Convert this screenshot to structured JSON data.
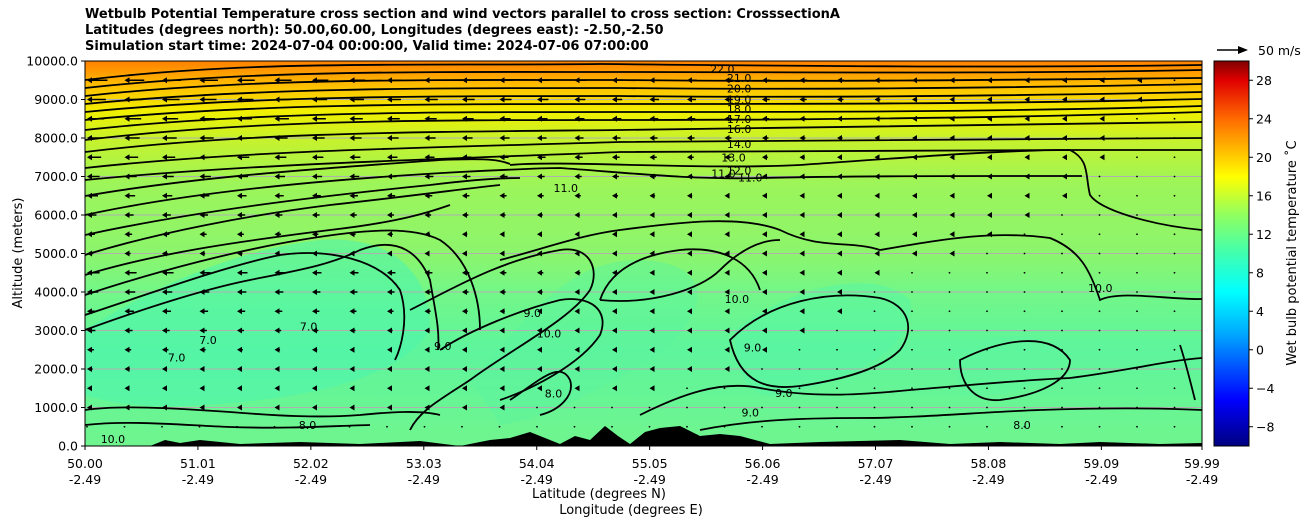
{
  "chart_data": {
    "type": "contour",
    "title_lines": [
      "Wetbulb Potential Temperature cross section and wind vectors parallel to cross section: CrosssectionA",
      "Latitudes (degrees north): 50.00,60.00, Longitudes (degrees east): -2.50,-2.50",
      "Simulation start time: 2024-07-04 00:00:00, Valid time: 2024-07-06 07:00:00"
    ],
    "ylabel": "Altitude (meters)",
    "xlabel_lat": "Latitude (degrees N)",
    "xlabel_lon": "Longitude (degrees E)",
    "ylim": [
      0,
      10000
    ],
    "y_ticks": [
      "0.0",
      "1000.0",
      "2000.0",
      "3000.0",
      "4000.0",
      "5000.0",
      "6000.0",
      "7000.0",
      "8000.0",
      "9000.0",
      "10000.0"
    ],
    "x_ticks": [
      {
        "lat": "50.00",
        "lon": "-2.49"
      },
      {
        "lat": "51.01",
        "lon": "-2.49"
      },
      {
        "lat": "52.02",
        "lon": "-2.49"
      },
      {
        "lat": "53.03",
        "lon": "-2.49"
      },
      {
        "lat": "54.04",
        "lon": "-2.49"
      },
      {
        "lat": "55.05",
        "lon": "-2.49"
      },
      {
        "lat": "56.06",
        "lon": "-2.49"
      },
      {
        "lat": "57.07",
        "lon": "-2.49"
      },
      {
        "lat": "58.08",
        "lon": "-2.49"
      },
      {
        "lat": "59.09",
        "lon": "-2.49"
      },
      {
        "lat": "59.99",
        "lon": "-2.49"
      }
    ],
    "colorbar": {
      "label": "Wet bulb potential temperature ˚C",
      "range": [
        -10,
        30
      ],
      "ticks": [
        "−8",
        "−4",
        "0",
        "4",
        "8",
        "12",
        "16",
        "20",
        "24",
        "28"
      ]
    },
    "quiver_key": {
      "label": "50 m/s"
    },
    "contour_labels": [
      {
        "text": "22.0",
        "lat": 55.7,
        "alt": 9790
      },
      {
        "text": "21.0",
        "lat": 55.85,
        "alt": 9560
      },
      {
        "text": "20.0",
        "lat": 55.85,
        "alt": 9280
      },
      {
        "text": "19.0",
        "lat": 55.85,
        "alt": 9000
      },
      {
        "text": "18.0",
        "lat": 55.85,
        "alt": 8750
      },
      {
        "text": "17.0",
        "lat": 55.85,
        "alt": 8500
      },
      {
        "text": "16.0",
        "lat": 55.85,
        "alt": 8230
      },
      {
        "text": "14.0",
        "lat": 55.85,
        "alt": 7840
      },
      {
        "text": "13.0",
        "lat": 55.8,
        "alt": 7500
      },
      {
        "text": "12.0",
        "lat": 55.85,
        "alt": 7150
      },
      {
        "text": "11.0",
        "lat": 55.71,
        "alt": 7080
      },
      {
        "text": "11.0",
        "lat": 55.95,
        "alt": 6980
      },
      {
        "text": "11.0",
        "lat": 54.3,
        "alt": 6700
      },
      {
        "text": "10.0",
        "lat": 55.83,
        "alt": 3820
      },
      {
        "text": "10.0",
        "lat": 59.08,
        "alt": 4100
      },
      {
        "text": "10.0",
        "lat": 54.15,
        "alt": 2920
      },
      {
        "text": "9.0",
        "lat": 54.0,
        "alt": 3450
      },
      {
        "text": "9.0",
        "lat": 53.2,
        "alt": 2600
      },
      {
        "text": "9.0",
        "lat": 55.97,
        "alt": 2560
      },
      {
        "text": "9.0",
        "lat": 56.25,
        "alt": 1380
      },
      {
        "text": "9.0",
        "lat": 55.95,
        "alt": 870
      },
      {
        "text": "8.0",
        "lat": 54.19,
        "alt": 1370
      },
      {
        "text": "8.0",
        "lat": 51.99,
        "alt": 540
      },
      {
        "text": "8.0",
        "lat": 58.38,
        "alt": 540
      },
      {
        "text": "7.0",
        "lat": 50.82,
        "alt": 2300
      },
      {
        "text": "7.0",
        "lat": 51.1,
        "alt": 2750
      },
      {
        "text": "7.0",
        "lat": 52.0,
        "alt": 3100
      },
      {
        "text": "10.0",
        "lat": 50.25,
        "alt": 180
      }
    ]
  }
}
